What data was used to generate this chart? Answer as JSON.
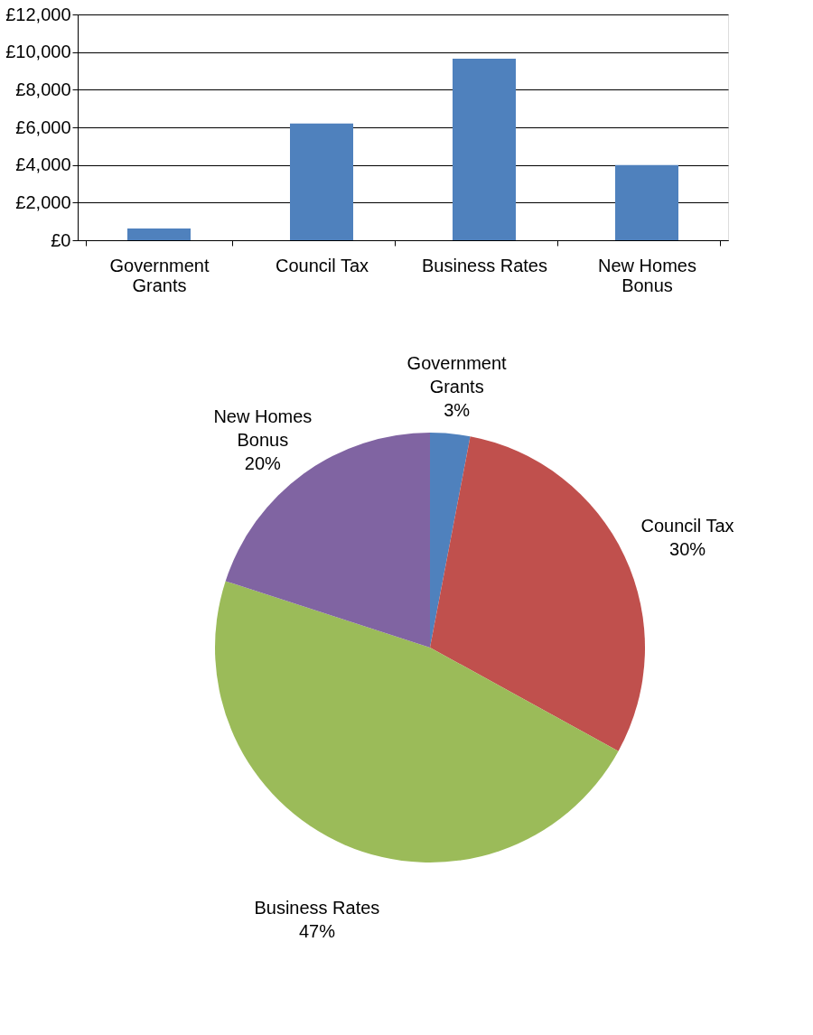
{
  "chart_data": [
    {
      "type": "bar",
      "categories": [
        "Government Grants",
        "Council Tax",
        "Business Rates",
        "New Homes Bonus"
      ],
      "values": [
        630,
        6200,
        9650,
        4000
      ],
      "color": "#4f81bd",
      "ylim": [
        0,
        12000
      ],
      "yticks": [
        {
          "value": 0,
          "label": "£0"
        },
        {
          "value": 2000,
          "label": "£2,000"
        },
        {
          "value": 4000,
          "label": "£4,000"
        },
        {
          "value": 6000,
          "label": "£6,000"
        },
        {
          "value": 8000,
          "label": "£8,000"
        },
        {
          "value": 10000,
          "label": "£10,000"
        },
        {
          "value": 12000,
          "label": "£12,000"
        }
      ],
      "grid": "y"
    },
    {
      "type": "pie",
      "categories": [
        "Government Grants",
        "Council Tax",
        "Business Rates",
        "New Homes Bonus"
      ],
      "values": [
        3,
        30,
        47,
        20
      ],
      "colors": [
        "#4f81bd",
        "#c0504d",
        "#9bbb59",
        "#8064a2"
      ],
      "value_labels": [
        "3%",
        "30%",
        "47%",
        "20%"
      ]
    }
  ]
}
